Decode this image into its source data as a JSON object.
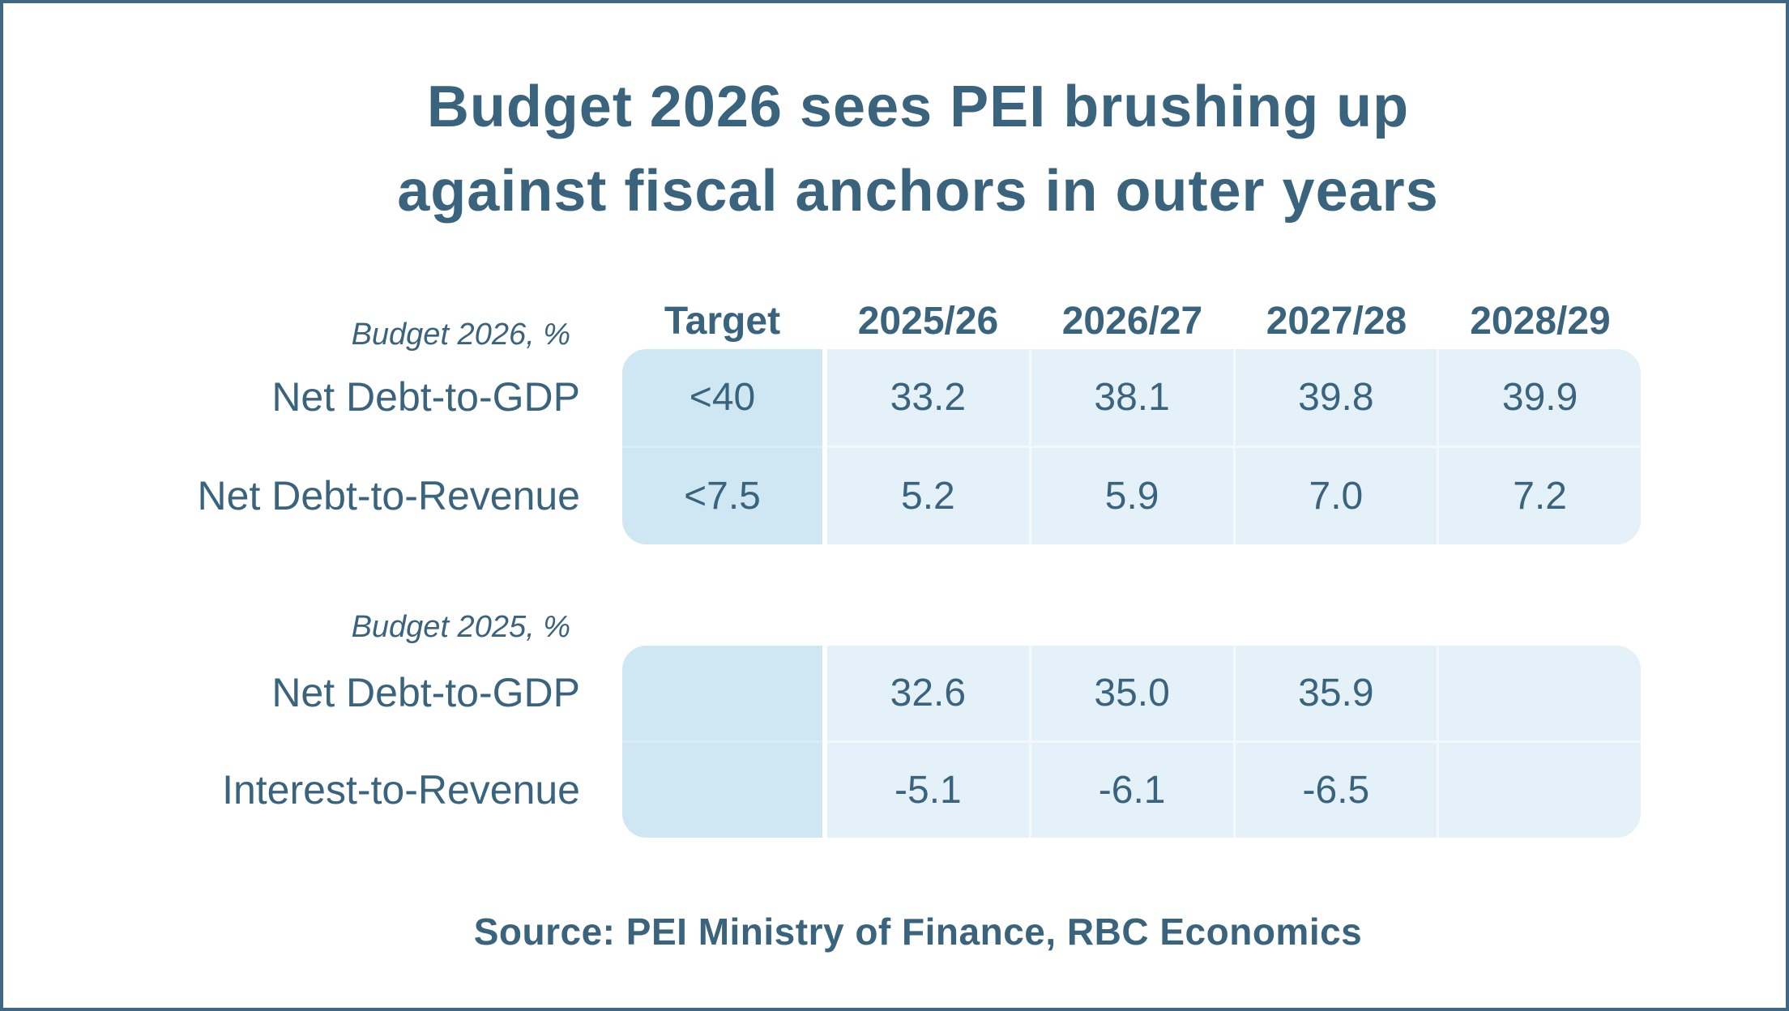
{
  "colors": {
    "text": "#3a637e",
    "frame_border": "#416881",
    "target_cell_bg": "#cfe7f3",
    "value_cell_bg": "#e4f1f8"
  },
  "chart_data": {
    "type": "table",
    "title_line1": "Budget 2026 sees PEI brushing up",
    "title_line2": "against fiscal anchors in outer years",
    "columns": [
      "Target",
      "2025/26",
      "2026/27",
      "2027/28",
      "2028/29"
    ],
    "sections": [
      {
        "label": "Budget 2026, %",
        "rows": [
          {
            "label": "Net Debt-to-GDP",
            "cells": [
              "<40",
              "33.2",
              "38.1",
              "39.8",
              "39.9"
            ]
          },
          {
            "label": "Net Debt-to-Revenue",
            "cells": [
              "<7.5",
              "5.2",
              "5.9",
              "7.0",
              "7.2"
            ]
          }
        ]
      },
      {
        "label": "Budget 2025, %",
        "rows": [
          {
            "label": "Net Debt-to-GDP",
            "cells": [
              "",
              "32.6",
              "35.0",
              "35.9",
              ""
            ]
          },
          {
            "label": "Interest-to-Revenue",
            "cells": [
              "",
              "-5.1",
              "-6.1",
              "-6.5",
              ""
            ]
          }
        ]
      }
    ],
    "source": "Source: PEI Ministry of Finance, RBC Economics"
  }
}
